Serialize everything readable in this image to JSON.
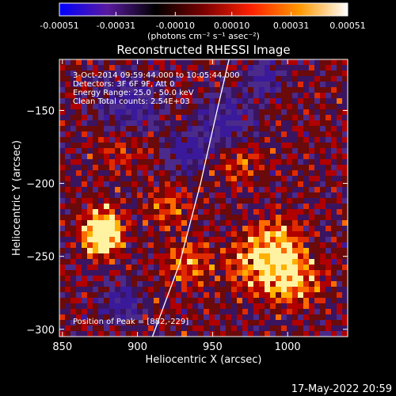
{
  "colorbar": {
    "stops": [
      "#0000ff",
      "#5a1aa0",
      "#000000",
      "#7a0000",
      "#ff2000",
      "#ff9900",
      "#ffffff"
    ],
    "tick_labels": [
      "-0.00051",
      "-0.00031",
      "-0.00010",
      "0.00010",
      "0.00031",
      "0.00051"
    ],
    "unit_label": "(photons cm⁻² s⁻¹ asec⁻²)"
  },
  "chart_data": {
    "type": "heatmap",
    "title": "Reconstructed RHESSI Image",
    "xlabel": "Heliocentric X (arcsec)",
    "ylabel": "Heliocentric Y (arcsec)",
    "xlim": [
      848,
      1040
    ],
    "ylim": [
      -305,
      -115
    ],
    "xticks": [
      850,
      900,
      950,
      1000
    ],
    "yticks": [
      -150,
      -200,
      -250,
      -300
    ],
    "xtick_labels": [
      "850",
      "900",
      "950",
      "1000"
    ],
    "ytick_labels": [
      "−150",
      "−200",
      "−250",
      "−300"
    ],
    "value_range": [
      -0.00051,
      0.00051
    ],
    "annotations": [
      "3-Oct-2014 09:59:44.000 to 10:05:44.000",
      "Detectors: 3F 6F 9F, Att 0",
      "Energy Range: 25.0 - 50.0 keV",
      "Clean    Total counts: 2.54E+03"
    ],
    "peak_label": "Position of Peak = [882,-229]",
    "peak": [
      882,
      -229
    ],
    "limb_points": [
      [
        910,
        -305
      ],
      [
        928,
        -255
      ],
      [
        942,
        -200
      ],
      [
        953,
        -150
      ],
      [
        961,
        -115
      ]
    ]
  },
  "footer": {
    "date": "17-May-2022 20:59"
  }
}
